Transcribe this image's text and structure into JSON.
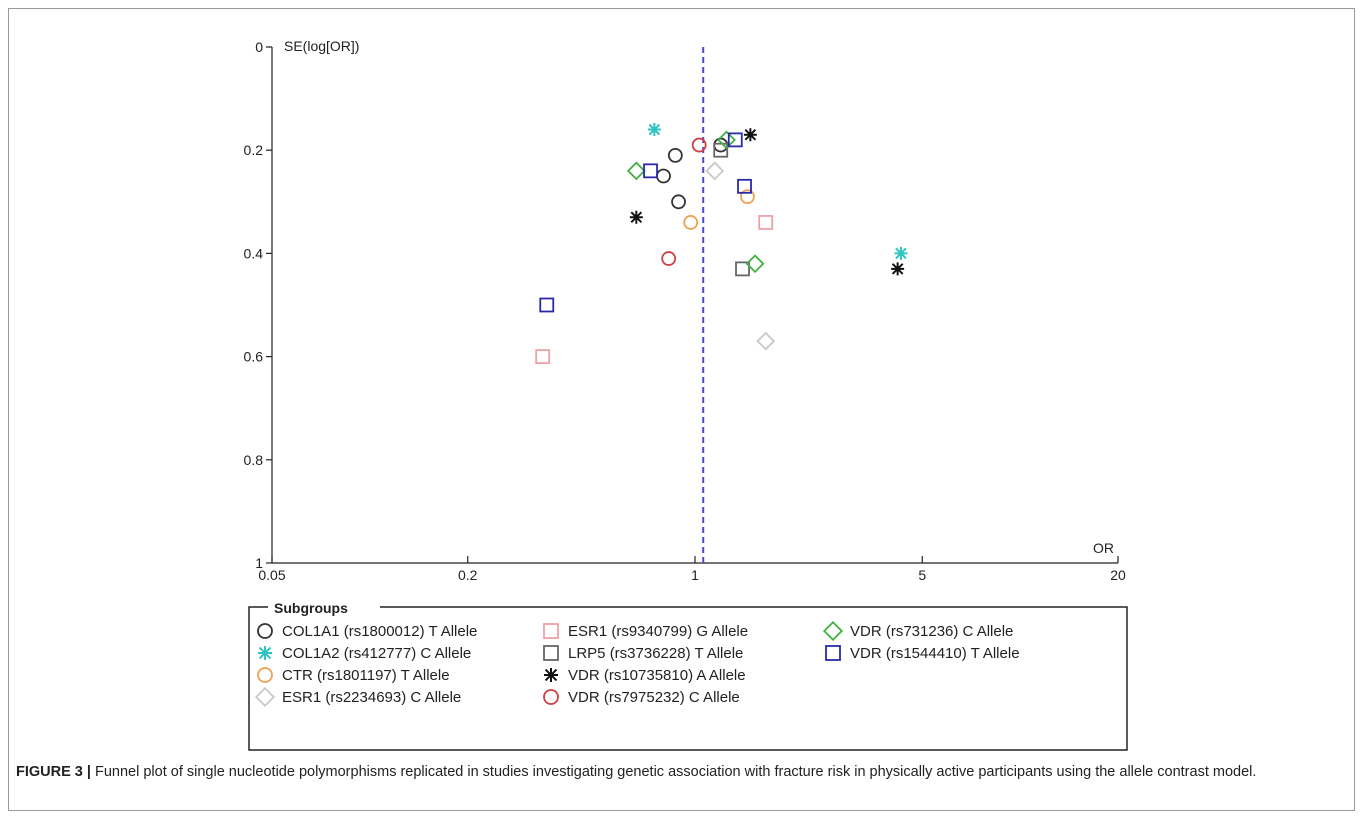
{
  "figure": {
    "caption_label": "FIGURE 3 |",
    "caption_text": "Funnel plot of single nucleotide polymorphisms replicated in studies investigating genetic association with fracture risk in physically active participants using the allele contrast model."
  },
  "chart_data": {
    "type": "scatter",
    "title": "",
    "xlabel": "OR",
    "ylabel": "SE(log[OR])",
    "x_scale": "log",
    "xlim": [
      0.05,
      20
    ],
    "x_ticks": [
      0.05,
      0.2,
      1,
      5,
      20
    ],
    "x_tick_labels": [
      "0.05",
      "0.2",
      "1",
      "5",
      "20"
    ],
    "ylim": [
      0,
      1
    ],
    "y_reversed": true,
    "y_ticks": [
      0,
      0.2,
      0.4,
      0.6,
      0.8,
      1
    ],
    "y_tick_labels": [
      "0",
      "0.2",
      "0.4",
      "0.6",
      "0.8",
      "1"
    ],
    "reference_line_x": 1.06,
    "grid": false,
    "legend_title": "Subgroups",
    "legend_position": "bottom",
    "series": [
      {
        "name": "COL1A1 (rs1800012) T Allele",
        "marker": "circle",
        "color": "#333333",
        "points": [
          [
            0.8,
            0.25
          ],
          [
            0.87,
            0.21
          ],
          [
            0.89,
            0.3
          ],
          [
            1.2,
            0.19
          ]
        ]
      },
      {
        "name": "COL1A2 (rs412777) C Allele",
        "marker": "asterisk",
        "color": "#2ec4c4",
        "points": [
          [
            0.75,
            0.16
          ],
          [
            4.3,
            0.4
          ]
        ]
      },
      {
        "name": "CTR (rs1801197) T Allele",
        "marker": "circle",
        "color": "#f0a050",
        "points": [
          [
            0.97,
            0.34
          ],
          [
            1.45,
            0.29
          ]
        ]
      },
      {
        "name": "ESR1 (rs2234693) C Allele",
        "marker": "diamond",
        "color": "#c8c8c8",
        "points": [
          [
            1.15,
            0.24
          ],
          [
            1.65,
            0.57
          ]
        ]
      },
      {
        "name": "ESR1 (rs9340799) G Allele",
        "marker": "square",
        "color": "#f0a0a8",
        "points": [
          [
            0.34,
            0.6
          ],
          [
            1.65,
            0.34
          ]
        ]
      },
      {
        "name": "LRP5 (rs3736228) T Allele",
        "marker": "square",
        "color": "#666666",
        "points": [
          [
            1.2,
            0.2
          ],
          [
            1.4,
            0.43
          ]
        ]
      },
      {
        "name": "VDR (rs10735810) A Allele",
        "marker": "asterisk",
        "color": "#111111",
        "points": [
          [
            0.66,
            0.33
          ],
          [
            1.48,
            0.17
          ],
          [
            4.2,
            0.43
          ]
        ]
      },
      {
        "name": "VDR (rs7975232) C Allele",
        "marker": "circle",
        "color": "#d04040",
        "points": [
          [
            1.03,
            0.19
          ],
          [
            0.83,
            0.41
          ]
        ]
      },
      {
        "name": "VDR (rs731236) C Allele",
        "marker": "diamond",
        "color": "#40b040",
        "points": [
          [
            0.66,
            0.24
          ],
          [
            1.25,
            0.18
          ],
          [
            1.53,
            0.42
          ]
        ]
      },
      {
        "name": "VDR (rs1544410) T Allele",
        "marker": "square",
        "color": "#2a2aa8",
        "points": [
          [
            0.73,
            0.24
          ],
          [
            1.33,
            0.18
          ],
          [
            1.42,
            0.27
          ],
          [
            0.35,
            0.5
          ]
        ]
      }
    ]
  }
}
